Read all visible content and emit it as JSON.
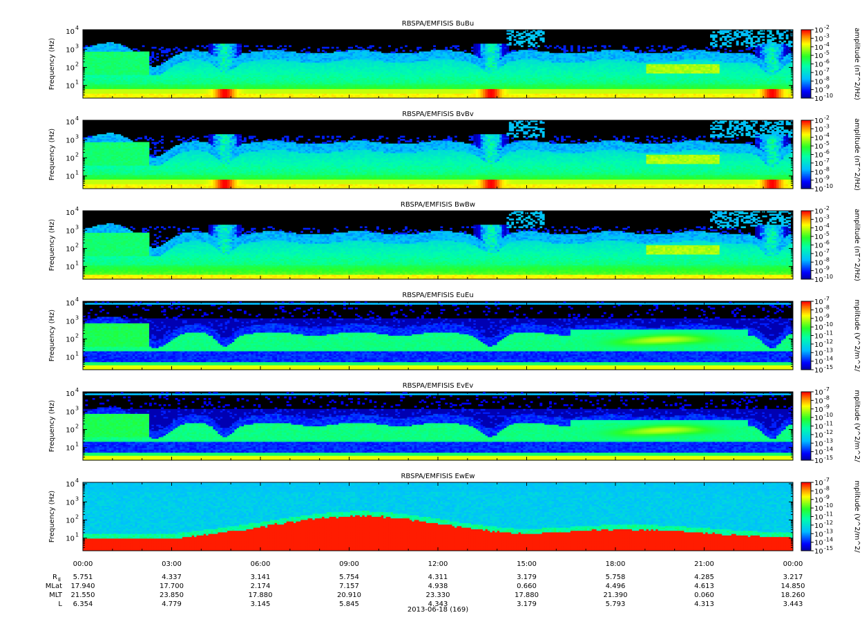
{
  "chart_data": {
    "type": "heatmap",
    "date_label": "2013-06-18 (169)",
    "x_ticks": [
      "00:00",
      "03:00",
      "06:00",
      "09:00",
      "12:00",
      "15:00",
      "18:00",
      "21:00",
      "00:00"
    ],
    "x_range_hours": [
      0,
      24
    ],
    "ephemeris": [
      {
        "label": "R",
        "subscript": "E",
        "values": [
          "5.751",
          "4.337",
          "3.141",
          "5.754",
          "4.311",
          "3.179",
          "5.758",
          "4.285",
          "3.217"
        ]
      },
      {
        "label": "MLat",
        "values": [
          "17.940",
          "17.700",
          "2.174",
          "7.157",
          "4.938",
          "0.660",
          "4.496",
          "4.613",
          "14.850"
        ]
      },
      {
        "label": "MLT",
        "values": [
          "21.550",
          "23.850",
          "17.880",
          "20.910",
          "23.330",
          "17.880",
          "21.390",
          "0.060",
          "18.260"
        ]
      },
      {
        "label": "L",
        "values": [
          "6.354",
          "4.779",
          "3.145",
          "5.845",
          "4.343",
          "3.179",
          "5.793",
          "4.313",
          "3.443"
        ]
      }
    ],
    "panels": [
      {
        "title": "RBSPA/EMFISIS  BuBu",
        "ylabel": "Frequency (Hz)",
        "yscale": "log",
        "ylim": [
          2,
          12000
        ],
        "y_ticks": [
          "10",
          "10",
          "10",
          "10"
        ],
        "y_exponents": [
          "1",
          "2",
          "3",
          "4"
        ],
        "colorbar": {
          "label": "amplitude (nT^2/Hz)",
          "ticks": [
            "10",
            "10",
            "10",
            "10",
            "10",
            "10",
            "10",
            "10",
            "10"
          ],
          "exponents": [
            "-2",
            "-3",
            "-4",
            "-5",
            "-6",
            "-7",
            "-8",
            "-9",
            "-10"
          ],
          "range_log": [
            -10,
            -2
          ]
        }
      },
      {
        "title": "RBSPA/EMFISIS  BvBv",
        "ylabel": "Frequency (Hz)",
        "yscale": "log",
        "ylim": [
          2,
          12000
        ],
        "y_ticks": [
          "10",
          "10",
          "10",
          "10"
        ],
        "y_exponents": [
          "1",
          "2",
          "3",
          "4"
        ],
        "colorbar": {
          "label": "amplitude (nT^2/Hz)",
          "ticks": [
            "10",
            "10",
            "10",
            "10",
            "10",
            "10",
            "10",
            "10",
            "10"
          ],
          "exponents": [
            "-2",
            "-3",
            "-4",
            "-5",
            "-6",
            "-7",
            "-8",
            "-9",
            "-10"
          ],
          "range_log": [
            -10,
            -2
          ]
        }
      },
      {
        "title": "RBSPA/EMFISIS  BwBw",
        "ylabel": "Frequency (Hz)",
        "yscale": "log",
        "ylim": [
          2,
          12000
        ],
        "y_ticks": [
          "10",
          "10",
          "10",
          "10"
        ],
        "y_exponents": [
          "1",
          "2",
          "3",
          "4"
        ],
        "colorbar": {
          "label": "amplitude (nT^2/Hz)",
          "ticks": [
            "10",
            "10",
            "10",
            "10",
            "10",
            "10",
            "10",
            "10",
            "10"
          ],
          "exponents": [
            "-2",
            "-3",
            "-4",
            "-5",
            "-6",
            "-7",
            "-8",
            "-9",
            "-10"
          ],
          "range_log": [
            -10,
            -2
          ]
        }
      },
      {
        "title": "RBSPA/EMFISIS  EuEu",
        "ylabel": "Frequency (Hz)",
        "yscale": "log",
        "ylim": [
          2,
          12000
        ],
        "y_ticks": [
          "10",
          "10",
          "10",
          "10"
        ],
        "y_exponents": [
          "1",
          "2",
          "3",
          "4"
        ],
        "colorbar": {
          "label": "mplitude (V^2/m^2/",
          "ticks": [
            "10",
            "10",
            "10",
            "10",
            "10",
            "10",
            "10",
            "10",
            "10"
          ],
          "exponents": [
            "-7",
            "-8",
            "-9",
            "-10",
            "-11",
            "-12",
            "-13",
            "-14",
            "-15"
          ],
          "range_log": [
            -15,
            -7
          ]
        }
      },
      {
        "title": "RBSPA/EMFISIS  EvEv",
        "ylabel": "Frequency (Hz)",
        "yscale": "log",
        "ylim": [
          2,
          12000
        ],
        "y_ticks": [
          "10",
          "10",
          "10",
          "10"
        ],
        "y_exponents": [
          "1",
          "2",
          "3",
          "4"
        ],
        "colorbar": {
          "label": "mplitude (V^2/m^2/",
          "ticks": [
            "10",
            "10",
            "10",
            "10",
            "10",
            "10",
            "10",
            "10",
            "10"
          ],
          "exponents": [
            "-7",
            "-8",
            "-9",
            "-10",
            "-11",
            "-12",
            "-13",
            "-14",
            "-15"
          ],
          "range_log": [
            -15,
            -7
          ]
        }
      },
      {
        "title": "RBSPA/EMFISIS  EwEw",
        "ylabel": "Frequency (Hz)",
        "yscale": "log",
        "ylim": [
          2,
          12000
        ],
        "y_ticks": [
          "10",
          "10",
          "10",
          "10"
        ],
        "y_exponents": [
          "1",
          "2",
          "3",
          "4"
        ],
        "colorbar": {
          "label": "mplitude (V^2/m^2/",
          "ticks": [
            "10",
            "10",
            "10",
            "10",
            "10",
            "10",
            "10",
            "10",
            "10"
          ],
          "exponents": [
            "-7",
            "-8",
            "-9",
            "-10",
            "-11",
            "-12",
            "-13",
            "-14",
            "-15"
          ],
          "range_log": [
            -15,
            -7
          ]
        }
      }
    ]
  }
}
